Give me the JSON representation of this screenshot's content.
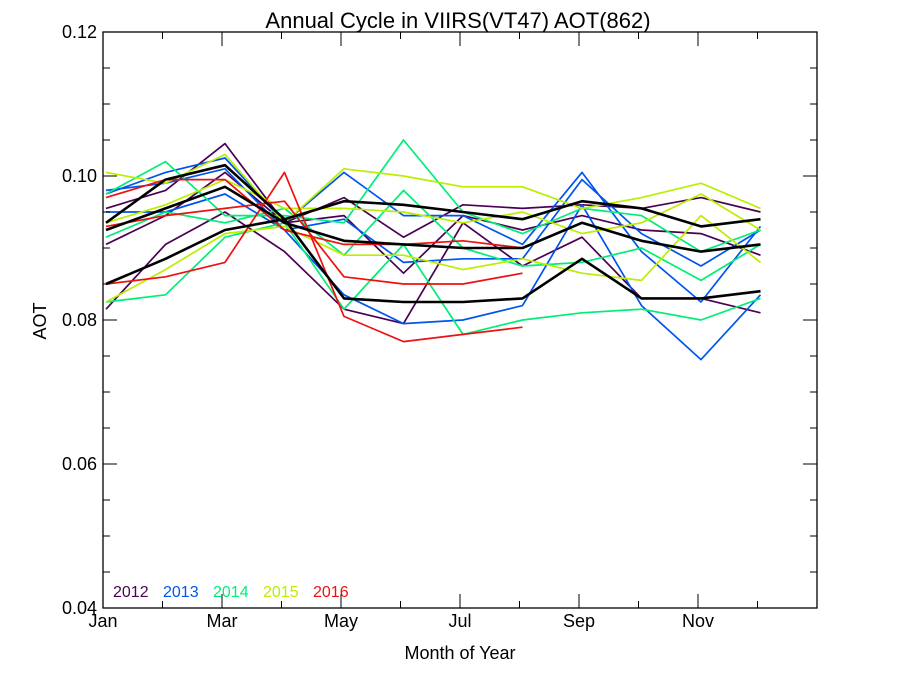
{
  "chart_data": {
    "type": "line",
    "title": "Annual Cycle in VIIRS(VT47) AOT(862)",
    "xlabel": "Month of Year",
    "ylabel": "AOT",
    "xlim": [
      1,
      12
    ],
    "ylim": [
      0.04,
      0.12
    ],
    "x_ticks": [
      1,
      3,
      5,
      7,
      9,
      11
    ],
    "x_tick_labels": [
      "Jan",
      "Mar",
      "May",
      "Jul",
      "Sep",
      "Nov"
    ],
    "y_ticks": [
      0.04,
      0.06,
      0.08,
      0.1,
      0.12
    ],
    "y_tick_labels": [
      "0.04",
      "0.06",
      "0.08",
      "0.10",
      "0.12"
    ],
    "legend_position": "bottom-left",
    "legend": [
      {
        "label": "2012",
        "color": "#4b0055"
      },
      {
        "label": "2013",
        "color": "#0055ee"
      },
      {
        "label": "2014",
        "color": "#00ee77"
      },
      {
        "label": "2015",
        "color": "#bbee00"
      },
      {
        "label": "2016",
        "color": "#ee1111"
      }
    ],
    "series": [
      {
        "year": "2012",
        "color": "#4b0055",
        "values": [
          0.0955,
          0.098,
          0.1045,
          0.0935,
          0.097,
          0.0915,
          0.096,
          0.0955,
          0.096,
          0.0955,
          0.097,
          0.095
        ]
      },
      {
        "year": "2012",
        "color": "#4b0055",
        "values": [
          0.0905,
          0.0945,
          0.1005,
          0.0935,
          0.0945,
          0.0865,
          0.0945,
          0.0925,
          0.0945,
          0.0925,
          0.092,
          0.089
        ]
      },
      {
        "year": "2012",
        "color": "#4b0055",
        "values": [
          0.0815,
          0.0905,
          0.095,
          0.0895,
          0.0815,
          0.0795,
          0.0935,
          0.0875,
          0.0915,
          0.083,
          0.083,
          0.081
        ]
      },
      {
        "year": "2013",
        "color": "#0055ee",
        "values": [
          0.0975,
          0.1005,
          0.1025,
          0.0935,
          0.1005,
          0.0945,
          0.0945,
          0.0905,
          0.1005,
          0.0895,
          0.0825,
          0.093
        ]
      },
      {
        "year": "2013",
        "color": "#0055ee",
        "values": [
          0.095,
          0.095,
          0.0975,
          0.0925,
          0.094,
          0.088,
          0.0885,
          0.0885,
          0.0995,
          0.092,
          0.0875,
          0.0925
        ]
      },
      {
        "year": "2013",
        "color": "#0055ee",
        "values": [
          0.098,
          0.099,
          0.101,
          0.0925,
          0.0835,
          0.0795,
          0.08,
          0.082,
          0.096,
          0.082,
          0.0745,
          0.0835
        ]
      },
      {
        "year": "2014",
        "color": "#00ee77",
        "values": [
          0.0975,
          0.102,
          0.0945,
          0.0945,
          0.0935,
          0.105,
          0.095,
          0.092,
          0.0955,
          0.0945,
          0.0895,
          0.0925
        ]
      },
      {
        "year": "2014",
        "color": "#00ee77",
        "values": [
          0.0915,
          0.095,
          0.0935,
          0.0955,
          0.089,
          0.098,
          0.09,
          0.0875,
          0.088,
          0.09,
          0.0855,
          0.0905
        ]
      },
      {
        "year": "2014",
        "color": "#00ee77",
        "values": [
          0.0825,
          0.0835,
          0.0915,
          0.0935,
          0.0815,
          0.0905,
          0.078,
          0.08,
          0.081,
          0.0815,
          0.08,
          0.083
        ]
      },
      {
        "year": "2015",
        "color": "#bbee00",
        "values": [
          0.1005,
          0.099,
          0.103,
          0.0935,
          0.101,
          0.1,
          0.0985,
          0.0985,
          0.0955,
          0.097,
          0.099,
          0.0955
        ]
      },
      {
        "year": "2015",
        "color": "#bbee00",
        "values": [
          0.0935,
          0.096,
          0.0995,
          0.0955,
          0.0955,
          0.095,
          0.0935,
          0.095,
          0.092,
          0.0935,
          0.0975,
          0.0925
        ]
      },
      {
        "year": "2015",
        "color": "#bbee00",
        "values": [
          0.0825,
          0.087,
          0.092,
          0.093,
          0.089,
          0.089,
          0.087,
          0.0885,
          0.0865,
          0.0855,
          0.0945,
          0.088
        ]
      },
      {
        "year": "2016",
        "color": "#ee1111",
        "values": [
          0.097,
          0.0995,
          0.0995,
          0.0925,
          0.0905,
          0.0905,
          0.091,
          0.09,
          null,
          null,
          null,
          null
        ]
      },
      {
        "year": "2016",
        "color": "#ee1111",
        "values": [
          0.093,
          0.0945,
          0.0955,
          0.0965,
          0.086,
          0.085,
          0.085,
          0.0865,
          null,
          null,
          null,
          null
        ]
      },
      {
        "year": "2016",
        "color": "#ee1111",
        "values": [
          0.085,
          0.086,
          0.088,
          0.1005,
          0.0805,
          0.077,
          0.078,
          0.079,
          null,
          null,
          null,
          null
        ]
      },
      {
        "year": "",
        "color": "#000000",
        "values": [
          0.0935,
          0.0995,
          0.1015,
          0.094,
          0.0965,
          0.096,
          0.095,
          0.094,
          0.0965,
          0.0955,
          0.093,
          0.094
        ]
      },
      {
        "year": "",
        "color": "#000000",
        "values": [
          0.0925,
          0.0955,
          0.0985,
          0.0935,
          0.091,
          0.0905,
          0.09,
          0.09,
          0.0935,
          0.091,
          0.0895,
          0.0905
        ]
      },
      {
        "year": "",
        "color": "#000000",
        "values": [
          0.085,
          0.0885,
          0.0925,
          0.094,
          0.083,
          0.0825,
          0.0825,
          0.083,
          0.0885,
          0.083,
          0.083,
          0.084
        ]
      }
    ]
  }
}
